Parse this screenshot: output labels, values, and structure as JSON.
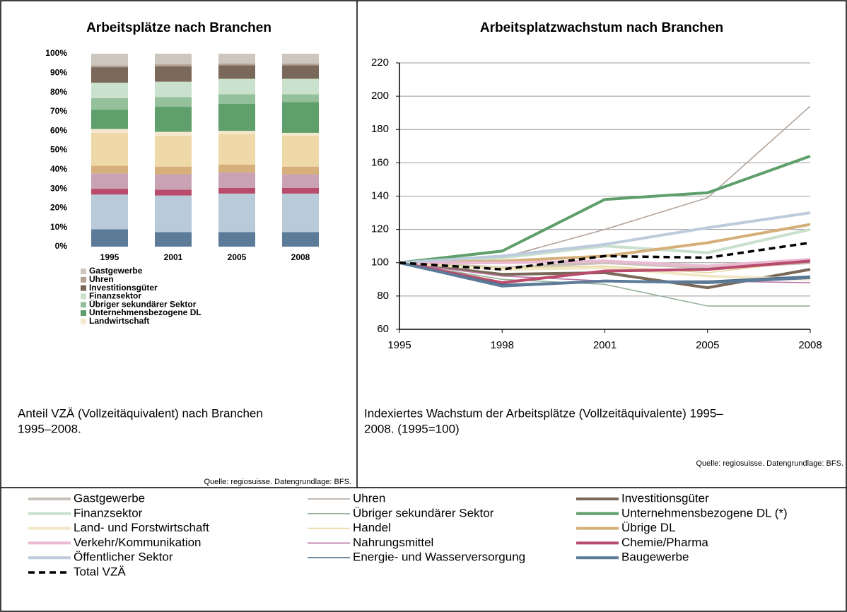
{
  "chart_data": [
    {
      "type": "stacked_bar",
      "title": "Arbeitsplätze nach Branchen",
      "categories": [
        "1995",
        "2001",
        "2005",
        "2008"
      ],
      "ylim": [
        0,
        100
      ],
      "yticks": [
        {
          "value": 0,
          "label": "0%"
        },
        {
          "value": 10,
          "label": "10%"
        },
        {
          "value": 20,
          "label": "20%"
        },
        {
          "value": 30,
          "label": "30%"
        },
        {
          "value": 40,
          "label": "40%"
        },
        {
          "value": 50,
          "label": "50%"
        },
        {
          "value": 60,
          "label": "60%"
        },
        {
          "value": 70,
          "label": "70%"
        },
        {
          "value": 80,
          "label": "80%"
        },
        {
          "value": 90,
          "label": "90%"
        },
        {
          "value": 100,
          "label": "100%"
        }
      ],
      "series": [
        {
          "name": null,
          "color": "#5b7b98",
          "values": [
            9,
            7.5,
            7.5,
            7.5
          ]
        },
        {
          "name": null,
          "color": "#b9cad9",
          "values": [
            18,
            19,
            20,
            20
          ]
        },
        {
          "name": null,
          "color": "#b94c6c",
          "values": [
            3,
            3,
            3,
            3
          ]
        },
        {
          "name": null,
          "color": "#c9a3b3",
          "values": [
            8,
            8,
            8,
            7
          ]
        },
        {
          "name": null,
          "color": "#d6af7b",
          "values": [
            4,
            4,
            4,
            4
          ]
        },
        {
          "name": null,
          "color": "#efd9a9",
          "values": [
            17,
            16,
            16,
            16
          ]
        },
        {
          "name": "Landwirtschaft",
          "color": "#f6e8cf",
          "values": [
            2,
            2,
            1.5,
            1.5
          ]
        },
        {
          "name": "Unternehmensbezogene DL",
          "color": "#5f9f6b",
          "values": [
            10,
            13,
            14,
            16
          ]
        },
        {
          "name": "Übriger sekundärer Sektor",
          "color": "#94c09b",
          "values": [
            6,
            5,
            5,
            4
          ]
        },
        {
          "name": "Finanzsektor",
          "color": "#cae1cd",
          "values": [
            8,
            8,
            8,
            8
          ]
        },
        {
          "name": "Investitionsgüter",
          "color": "#7a685a",
          "values": [
            8,
            8,
            7,
            7
          ]
        },
        {
          "name": "Uhren",
          "color": "#b3a395",
          "values": [
            1,
            1,
            1,
            1
          ]
        },
        {
          "name": "Gastgewerbe",
          "color": "#cdc6be",
          "values": [
            6,
            5.5,
            5,
            5
          ]
        }
      ],
      "caption": [
        "Anteil VZÄ (Vollzeitäquivalent) nach Branchen",
        "1995–2008."
      ],
      "source": "Quelle: regiosuisse. Datengrundlage: BFS."
    },
    {
      "type": "line",
      "title": "Arbeitsplatzwachstum nach Branchen",
      "categories": [
        "1995",
        "1998",
        "2001",
        "2005",
        "2008"
      ],
      "ylim": [
        60,
        220
      ],
      "yticks": [
        60,
        80,
        100,
        120,
        140,
        160,
        180,
        200,
        220
      ],
      "grid": true,
      "series": [
        {
          "name": "Gastgewerbe",
          "color": "#c9c1b9",
          "width": "thick",
          "values": [
            100,
            97,
            100,
            97,
            100
          ]
        },
        {
          "name": "Uhren",
          "color": "#b2a39a",
          "width": "thin",
          "values": [
            100,
            103,
            120,
            139,
            194
          ]
        },
        {
          "name": "Investitionsgüter",
          "color": "#7a6858",
          "width": "thick",
          "values": [
            100,
            93,
            94,
            85,
            96
          ]
        },
        {
          "name": "Finanzsektor",
          "color": "#c8e0cc",
          "width": "thick",
          "values": [
            100,
            103,
            110,
            106,
            120
          ]
        },
        {
          "name": "Übriger sekundärer Sektor",
          "color": "#94b29b",
          "width": "thin",
          "values": [
            100,
            90,
            87,
            74,
            74
          ]
        },
        {
          "name": "Unternehmensbezogene DL (*)",
          "color": "#5f9f6b",
          "width": "thick",
          "values": [
            100,
            107,
            138,
            142,
            164
          ]
        },
        {
          "name": "Land- und Forstwirtschaft",
          "color": "#f2e7c6",
          "width": "thick",
          "values": [
            100,
            96,
            97,
            92,
            90
          ]
        },
        {
          "name": "Handel",
          "color": "#e8d8a2",
          "width": "thin",
          "values": [
            100,
            97,
            98,
            94,
            101
          ]
        },
        {
          "name": "Übrige DL",
          "color": "#d5af79",
          "width": "thick",
          "values": [
            100,
            101,
            104,
            112,
            123
          ]
        },
        {
          "name": "Verkehr/Kommunikation",
          "color": "#e9bad1",
          "width": "thick",
          "values": [
            100,
            100,
            101,
            98,
            102
          ]
        },
        {
          "name": "Nahrungsmittel",
          "color": "#b972a2",
          "width": "thin",
          "values": [
            100,
            92,
            89,
            89,
            88
          ]
        },
        {
          "name": "Chemie/Pharma",
          "color": "#b94c6c",
          "width": "thick",
          "values": [
            100,
            88,
            95,
            96,
            101
          ]
        },
        {
          "name": "Öffentlicher Sektor",
          "color": "#bdcbdc",
          "width": "thick",
          "values": [
            100,
            104,
            111,
            121,
            130
          ]
        },
        {
          "name": "Energie- und Wasserversorgung",
          "color": "#4b6b89",
          "width": "thin",
          "values": [
            100,
            87,
            89,
            89,
            92
          ]
        },
        {
          "name": "Baugewerbe",
          "color": "#5b7b98",
          "width": "thick",
          "values": [
            100,
            86,
            89,
            88,
            91
          ]
        },
        {
          "name": "Total VZÄ",
          "color": "#000000",
          "width": "dashed",
          "values": [
            100,
            96,
            104,
            103,
            112
          ]
        }
      ],
      "caption": [
        "Indexiertes Wachstum der Arbeitsplätze (Vollzeitäquivalente) 1995–",
        "2008. (1995=100)"
      ],
      "source": "Quelle: regiosuisse. Datengrundlage: BFS."
    }
  ]
}
